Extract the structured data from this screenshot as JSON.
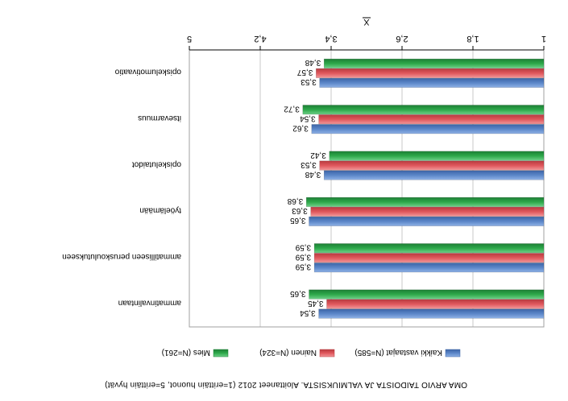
{
  "chart_data": {
    "type": "bar",
    "orientation": "horizontal",
    "title": "OMA ARVIO TAIDOISTA JA VALMIUKSISTA. Aloittaneet 2012 (1=erittäin huonot, 5=erittäin hyvät)",
    "xlabel": "X",
    "ylabel": "",
    "xlim": [
      1,
      5
    ],
    "ticks": [
      "1",
      "1,8",
      "2,6",
      "3,4",
      "4,2",
      "5"
    ],
    "grid": true,
    "legend_position": "bottom",
    "categories": [
      "ammatinvalintaan",
      "ammatilliseen peruskoulutukseen",
      "työelämään",
      "opiskelutaidot",
      "itsevarmuus",
      "opiskelumotivaatio"
    ],
    "series": [
      {
        "name": "Kaikki vastaajat (N=585)",
        "color": "#5b86c8",
        "values": [
          3.54,
          3.59,
          3.65,
          3.48,
          3.62,
          3.53
        ],
        "labels": [
          "3,54",
          "3,59",
          "3,65",
          "3,48",
          "3,62",
          "3,53"
        ]
      },
      {
        "name": "Nainen (N=324)",
        "color": "#e0575c",
        "values": [
          3.45,
          3.59,
          3.63,
          3.53,
          3.54,
          3.57
        ],
        "labels": [
          "3,45",
          "3,59",
          "3,63",
          "3,53",
          "3,54",
          "3,57"
        ]
      },
      {
        "name": "Mies (N=261)",
        "color": "#2da84a",
        "values": [
          3.65,
          3.59,
          3.68,
          3.42,
          3.72,
          3.48
        ],
        "labels": [
          "3,65",
          "3,59",
          "3,68",
          "3,42",
          "3,72",
          "3,48"
        ]
      }
    ]
  }
}
